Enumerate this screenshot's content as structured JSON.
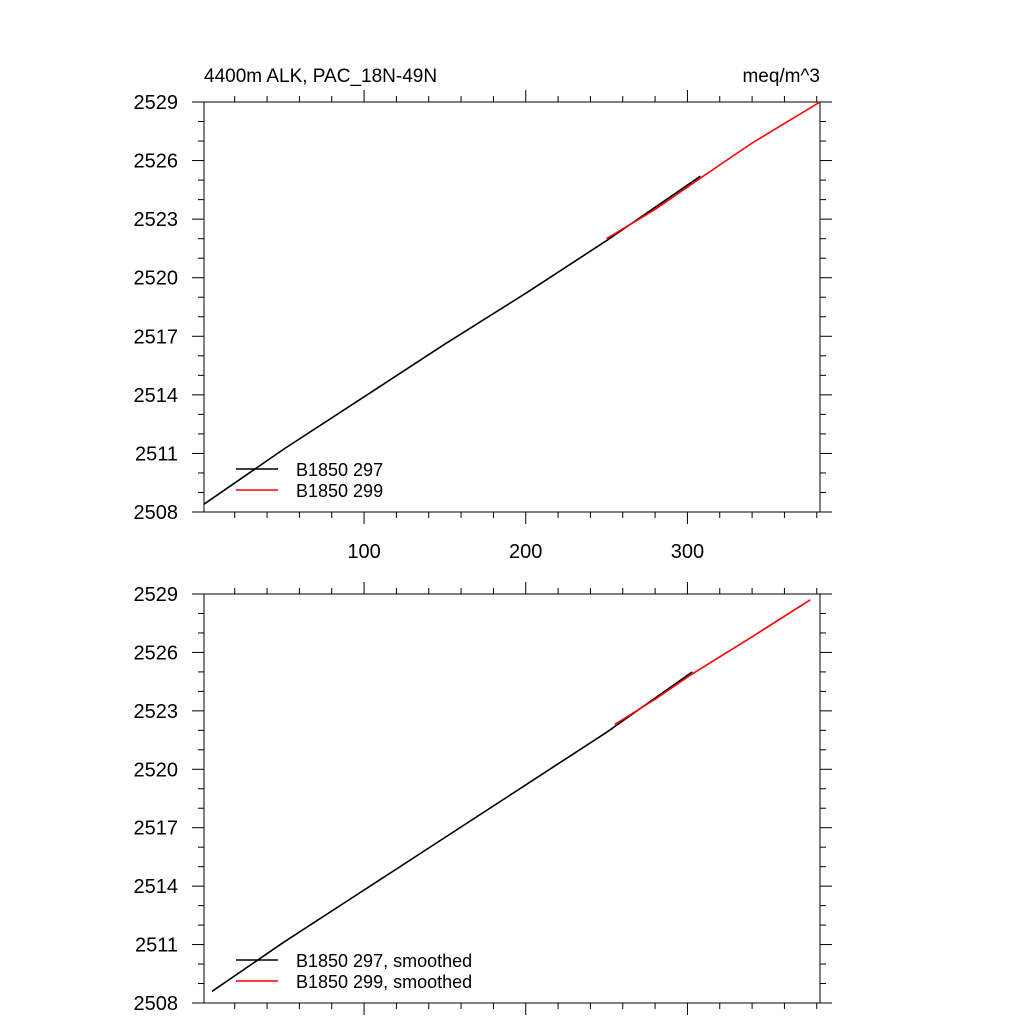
{
  "colors": {
    "series_a": "#000000",
    "series_b": "#ff0000",
    "axis": "#000000"
  },
  "chart_data": [
    {
      "type": "line",
      "title_left": "4400m ALK, PAC_18N-49N",
      "title_right": "meq/m^3",
      "xlim": [
        1,
        382
      ],
      "ylim": [
        2508,
        2529
      ],
      "x_ticks": [
        100,
        200,
        300
      ],
      "x_tick_labels": [
        "100",
        "200",
        "300"
      ],
      "y_ticks": [
        2508,
        2511,
        2514,
        2517,
        2520,
        2523,
        2526,
        2529
      ],
      "y_tick_labels": [
        "2508",
        "2511",
        "2514",
        "2517",
        "2520",
        "2523",
        "2526",
        "2529"
      ],
      "legend_position": "bottom-left",
      "series": [
        {
          "name": "B1850 297",
          "color": "#000000",
          "x": [
            1,
            50,
            100,
            150,
            200,
            250,
            308
          ],
          "y": [
            2508.4,
            2511.2,
            2513.9,
            2516.6,
            2519.2,
            2521.9,
            2525.2
          ]
        },
        {
          "name": "B1850 299",
          "color": "#ff0000",
          "x": [
            250,
            280,
            308,
            340,
            382
          ],
          "y": [
            2522.0,
            2523.5,
            2525.1,
            2526.9,
            2529.0
          ]
        }
      ]
    },
    {
      "type": "line",
      "xlim": [
        1,
        382
      ],
      "ylim": [
        2508,
        2529
      ],
      "x_ticks": [
        100,
        200,
        300
      ],
      "y_ticks": [
        2508,
        2511,
        2514,
        2517,
        2520,
        2523,
        2526,
        2529
      ],
      "y_tick_labels": [
        "2508",
        "2511",
        "2514",
        "2517",
        "2520",
        "2523",
        "2526",
        "2529"
      ],
      "legend_position": "bottom-left",
      "series": [
        {
          "name": "B1850 297, smoothed",
          "color": "#000000",
          "x": [
            6,
            50,
            100,
            150,
            200,
            250,
            303
          ],
          "y": [
            2508.6,
            2511.1,
            2513.8,
            2516.5,
            2519.2,
            2521.9,
            2525.0
          ]
        },
        {
          "name": "B1850 299, smoothed",
          "color": "#ff0000",
          "x": [
            255,
            280,
            303,
            340,
            376
          ],
          "y": [
            2522.3,
            2523.6,
            2524.9,
            2526.8,
            2528.7
          ]
        }
      ]
    }
  ]
}
